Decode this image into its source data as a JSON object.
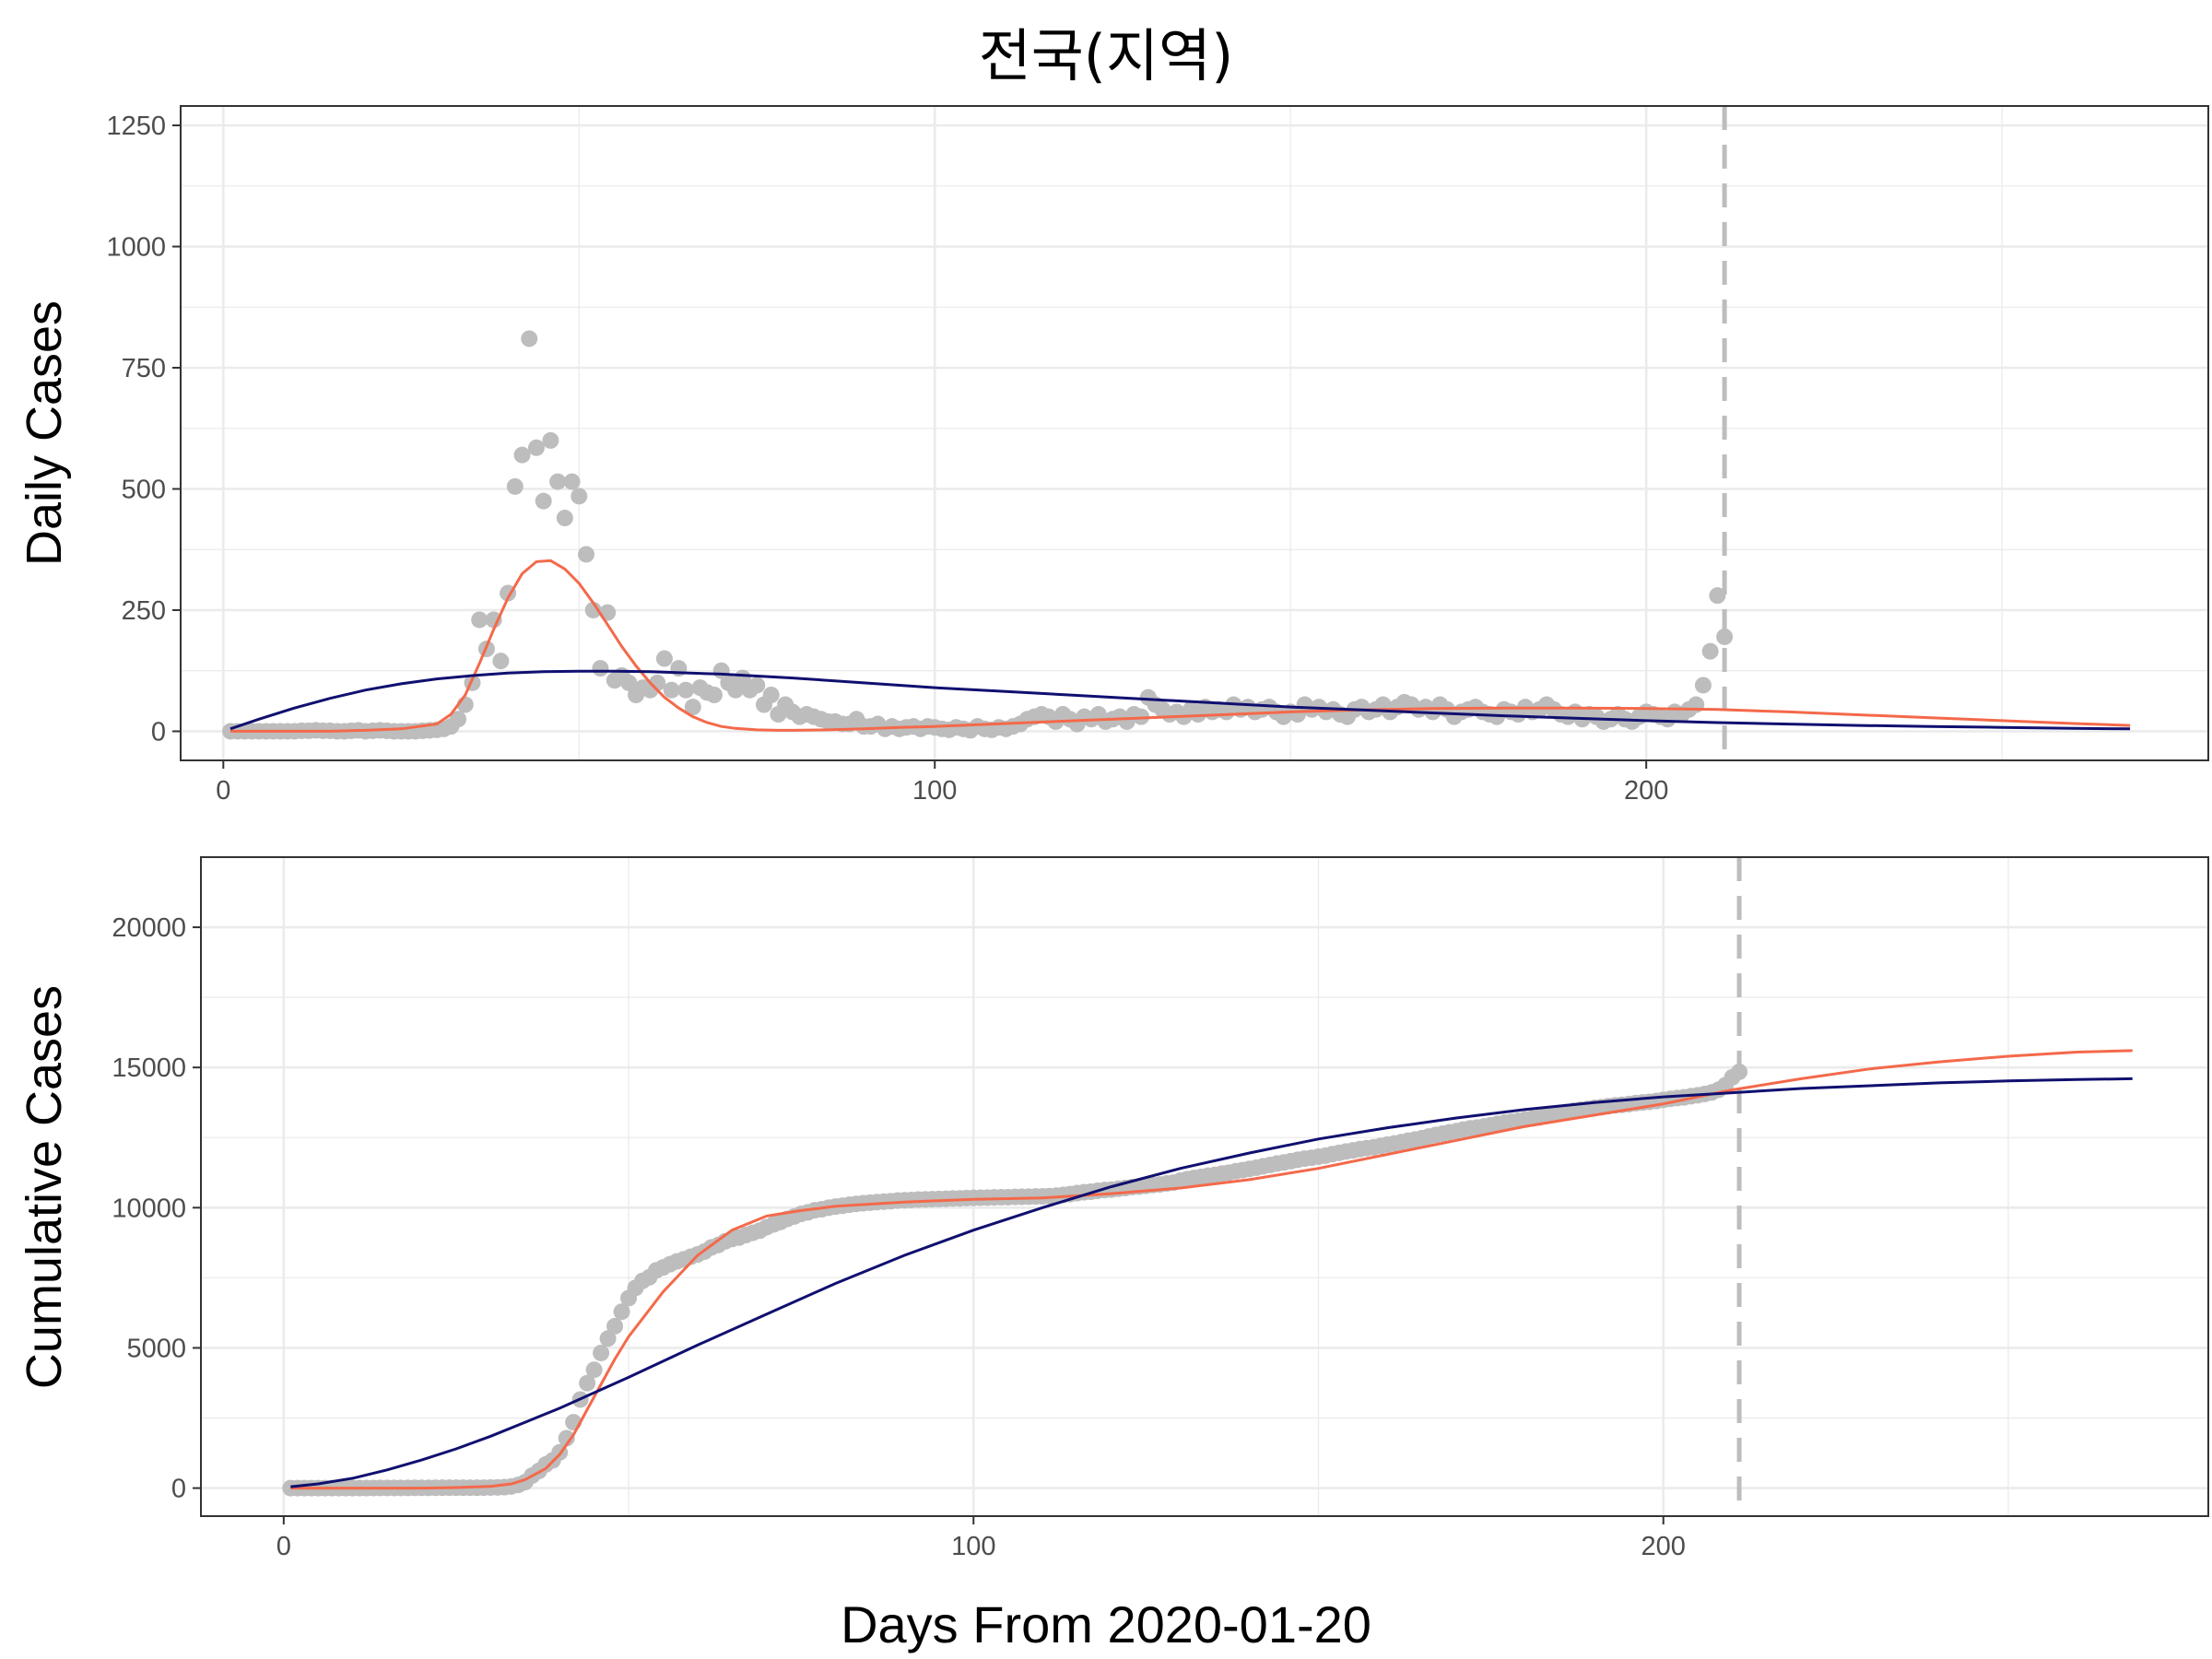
{
  "figure": {
    "title": "전국(지역)",
    "xlabel": "Days From 2020-01-20"
  },
  "colors": {
    "points": "#bdbdbd",
    "fit_red": "#f4694a",
    "fit_navy": "#101070",
    "vline": "#bdbdbd",
    "grid": "#ebebeb"
  },
  "chart_data": [
    {
      "type": "scatter",
      "panel": "daily",
      "ylabel": "Daily Cases",
      "xlim": [
        -6,
        279
      ],
      "ylim": [
        -60,
        1290
      ],
      "xticks": [
        0,
        100,
        200
      ],
      "yticks": [
        0,
        250,
        500,
        750,
        1000,
        1250
      ],
      "vline_x": 211,
      "points": [
        [
          1,
          0
        ],
        [
          2,
          0
        ],
        [
          3,
          0
        ],
        [
          4,
          0
        ],
        [
          5,
          0
        ],
        [
          6,
          0
        ],
        [
          7,
          0
        ],
        [
          8,
          0
        ],
        [
          9,
          0
        ],
        [
          10,
          0
        ],
        [
          11,
          1
        ],
        [
          12,
          1
        ],
        [
          13,
          2
        ],
        [
          14,
          1
        ],
        [
          15,
          1
        ],
        [
          16,
          0
        ],
        [
          17,
          0
        ],
        [
          18,
          1
        ],
        [
          19,
          2
        ],
        [
          20,
          0
        ],
        [
          21,
          1
        ],
        [
          22,
          2
        ],
        [
          23,
          1
        ],
        [
          24,
          0
        ],
        [
          25,
          0
        ],
        [
          26,
          0
        ],
        [
          27,
          0
        ],
        [
          28,
          1
        ],
        [
          29,
          2
        ],
        [
          30,
          3
        ],
        [
          31,
          5
        ],
        [
          32,
          10
        ],
        [
          33,
          25
        ],
        [
          34,
          55
        ],
        [
          35,
          100
        ],
        [
          36,
          230
        ],
        [
          37,
          170
        ],
        [
          38,
          230
        ],
        [
          39,
          145
        ],
        [
          40,
          285
        ],
        [
          41,
          505
        ],
        [
          42,
          570
        ],
        [
          43,
          810
        ],
        [
          44,
          585
        ],
        [
          45,
          475
        ],
        [
          46,
          600
        ],
        [
          47,
          515
        ],
        [
          48,
          440
        ],
        [
          49,
          515
        ],
        [
          50,
          485
        ],
        [
          51,
          365
        ],
        [
          52,
          250
        ],
        [
          53,
          130
        ],
        [
          54,
          245
        ],
        [
          55,
          105
        ],
        [
          56,
          115
        ],
        [
          57,
          100
        ],
        [
          58,
          75
        ],
        [
          59,
          90
        ],
        [
          60,
          85
        ],
        [
          61,
          100
        ],
        [
          62,
          150
        ],
        [
          63,
          85
        ],
        [
          64,
          130
        ],
        [
          65,
          85
        ],
        [
          66,
          50
        ],
        [
          67,
          90
        ],
        [
          68,
          80
        ],
        [
          69,
          75
        ],
        [
          70,
          125
        ],
        [
          71,
          100
        ],
        [
          72,
          85
        ],
        [
          73,
          110
        ],
        [
          74,
          85
        ],
        [
          75,
          95
        ],
        [
          76,
          55
        ],
        [
          77,
          75
        ],
        [
          78,
          35
        ],
        [
          79,
          55
        ],
        [
          80,
          40
        ],
        [
          81,
          30
        ],
        [
          82,
          35
        ],
        [
          83,
          30
        ],
        [
          84,
          25
        ],
        [
          85,
          20
        ],
        [
          86,
          20
        ],
        [
          87,
          15
        ],
        [
          88,
          15
        ],
        [
          89,
          25
        ],
        [
          90,
          10
        ],
        [
          91,
          10
        ],
        [
          92,
          15
        ],
        [
          93,
          5
        ],
        [
          94,
          10
        ],
        [
          95,
          5
        ],
        [
          96,
          8
        ],
        [
          97,
          10
        ],
        [
          98,
          5
        ],
        [
          99,
          10
        ],
        [
          100,
          8
        ],
        [
          101,
          5
        ],
        [
          102,
          3
        ],
        [
          103,
          8
        ],
        [
          104,
          5
        ],
        [
          105,
          2
        ],
        [
          106,
          10
        ],
        [
          107,
          5
        ],
        [
          108,
          3
        ],
        [
          109,
          8
        ],
        [
          110,
          5
        ],
        [
          111,
          10
        ],
        [
          112,
          15
        ],
        [
          113,
          25
        ],
        [
          114,
          30
        ],
        [
          115,
          35
        ],
        [
          116,
          30
        ],
        [
          117,
          20
        ],
        [
          118,
          35
        ],
        [
          119,
          25
        ],
        [
          120,
          15
        ],
        [
          121,
          30
        ],
        [
          122,
          25
        ],
        [
          123,
          35
        ],
        [
          124,
          20
        ],
        [
          125,
          25
        ],
        [
          126,
          30
        ],
        [
          127,
          20
        ],
        [
          128,
          35
        ],
        [
          129,
          30
        ],
        [
          130,
          70
        ],
        [
          131,
          55
        ],
        [
          132,
          45
        ],
        [
          133,
          35
        ],
        [
          134,
          40
        ],
        [
          135,
          30
        ],
        [
          136,
          45
        ],
        [
          137,
          35
        ],
        [
          138,
          50
        ],
        [
          139,
          40
        ],
        [
          140,
          45
        ],
        [
          141,
          40
        ],
        [
          142,
          55
        ],
        [
          143,
          45
        ],
        [
          144,
          50
        ],
        [
          145,
          40
        ],
        [
          146,
          45
        ],
        [
          147,
          50
        ],
        [
          148,
          40
        ],
        [
          149,
          30
        ],
        [
          150,
          40
        ],
        [
          151,
          35
        ],
        [
          152,
          55
        ],
        [
          153,
          45
        ],
        [
          154,
          50
        ],
        [
          155,
          40
        ],
        [
          156,
          45
        ],
        [
          157,
          35
        ],
        [
          158,
          30
        ],
        [
          159,
          45
        ],
        [
          160,
          50
        ],
        [
          161,
          40
        ],
        [
          162,
          45
        ],
        [
          163,
          55
        ],
        [
          164,
          40
        ],
        [
          165,
          50
        ],
        [
          166,
          60
        ],
        [
          167,
          55
        ],
        [
          168,
          45
        ],
        [
          169,
          50
        ],
        [
          170,
          40
        ],
        [
          171,
          55
        ],
        [
          172,
          45
        ],
        [
          173,
          30
        ],
        [
          174,
          40
        ],
        [
          175,
          45
        ],
        [
          176,
          50
        ],
        [
          177,
          40
        ],
        [
          178,
          35
        ],
        [
          179,
          30
        ],
        [
          180,
          45
        ],
        [
          181,
          40
        ],
        [
          182,
          35
        ],
        [
          183,
          50
        ],
        [
          184,
          40
        ],
        [
          185,
          45
        ],
        [
          186,
          55
        ],
        [
          187,
          45
        ],
        [
          188,
          35
        ],
        [
          189,
          30
        ],
        [
          190,
          40
        ],
        [
          191,
          25
        ],
        [
          192,
          35
        ],
        [
          193,
          30
        ],
        [
          194,
          20
        ],
        [
          195,
          25
        ],
        [
          196,
          35
        ],
        [
          197,
          25
        ],
        [
          198,
          20
        ],
        [
          199,
          30
        ],
        [
          200,
          40
        ],
        [
          201,
          35
        ],
        [
          202,
          30
        ],
        [
          203,
          25
        ],
        [
          204,
          40
        ],
        [
          205,
          35
        ],
        [
          206,
          45
        ],
        [
          207,
          55
        ],
        [
          208,
          95
        ],
        [
          209,
          165
        ],
        [
          210,
          280
        ],
        [
          211,
          195
        ]
      ],
      "series": [
        {
          "color": "red",
          "x": [
            1,
            5,
            10,
            15,
            20,
            25,
            30,
            32,
            34,
            36,
            38,
            40,
            42,
            44,
            46,
            48,
            50,
            52,
            54,
            56,
            58,
            60,
            62,
            64,
            66,
            68,
            70,
            72,
            75,
            78,
            80,
            85,
            90,
            95,
            100,
            105,
            110,
            120,
            130,
            140,
            150,
            160,
            170,
            180,
            190,
            200,
            210,
            220,
            230,
            240,
            250,
            260,
            268
          ],
          "y": [
            0,
            0,
            0,
            0,
            2,
            5,
            15,
            35,
            75,
            140,
            210,
            275,
            325,
            350,
            352,
            335,
            305,
            265,
            220,
            175,
            135,
            100,
            70,
            48,
            30,
            18,
            10,
            6,
            3,
            2,
            2,
            3,
            5,
            8,
            10,
            13,
            16,
            22,
            28,
            34,
            40,
            44,
            47,
            48,
            48,
            47,
            45,
            40,
            34,
            28,
            22,
            16,
            12
          ]
        },
        {
          "color": "navy",
          "x": [
            1,
            5,
            10,
            15,
            20,
            25,
            30,
            35,
            40,
            45,
            50,
            55,
            60,
            70,
            80,
            90,
            100,
            110,
            120,
            130,
            140,
            150,
            160,
            170,
            180,
            190,
            200,
            210,
            220,
            230,
            240,
            250,
            260,
            268
          ],
          "y": [
            5,
            25,
            48,
            68,
            85,
            98,
            108,
            115,
            120,
            123,
            124,
            124,
            123,
            118,
            110,
            100,
            90,
            82,
            74,
            66,
            58,
            50,
            44,
            38,
            32,
            27,
            22,
            18,
            15,
            12,
            10,
            8,
            6,
            5
          ]
        }
      ]
    },
    {
      "type": "scatter",
      "panel": "cumulative",
      "ylabel": "Cumulative Cases",
      "xlim": [
        -12,
        279
      ],
      "ylim": [
        -1000,
        22500
      ],
      "xticks": [
        0,
        100,
        200
      ],
      "yticks": [
        0,
        5000,
        10000,
        15000,
        20000
      ],
      "vline_x": 211,
      "series": [
        {
          "color": "red",
          "x": [
            1,
            10,
            20,
            25,
            30,
            33,
            35,
            38,
            40,
            42,
            44,
            46,
            48,
            50,
            55,
            60,
            65,
            70,
            75,
            80,
            90,
            100,
            110,
            120,
            130,
            140,
            150,
            160,
            170,
            180,
            190,
            200,
            210,
            220,
            230,
            240,
            250,
            260,
            268
          ],
          "y": [
            0,
            0,
            0,
            20,
            60,
            150,
            300,
            700,
            1200,
            1900,
            2800,
            3700,
            4600,
            5400,
            7000,
            8300,
            9200,
            9700,
            9900,
            10050,
            10200,
            10300,
            10350,
            10500,
            10700,
            11000,
            11400,
            11900,
            12400,
            12900,
            13300,
            13700,
            14200,
            14600,
            14950,
            15200,
            15400,
            15550,
            15600
          ]
        },
        {
          "color": "navy",
          "x": [
            1,
            5,
            10,
            15,
            20,
            25,
            30,
            35,
            40,
            45,
            50,
            60,
            70,
            80,
            90,
            100,
            110,
            120,
            130,
            140,
            150,
            160,
            170,
            180,
            190,
            200,
            210,
            220,
            230,
            240,
            250,
            260,
            268
          ],
          "y": [
            50,
            150,
            350,
            650,
            1000,
            1400,
            1850,
            2350,
            2850,
            3400,
            3950,
            5100,
            6200,
            7300,
            8300,
            9200,
            10000,
            10750,
            11400,
            11950,
            12450,
            12850,
            13200,
            13500,
            13750,
            13950,
            14100,
            14250,
            14350,
            14450,
            14520,
            14570,
            14600
          ]
        }
      ]
    }
  ]
}
